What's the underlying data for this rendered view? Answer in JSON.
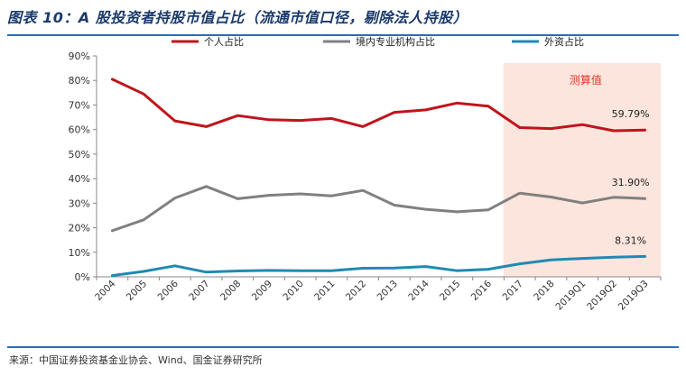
{
  "title": "图表 10：A 股投资者持股市值占比（流通市值口径，剔除法人持股）",
  "source": "来源：中国证券投资基金业协会、Wind、国金证券研究所",
  "colors": {
    "individual": "#c0141b",
    "institution": "#808080",
    "foreign": "#1f8ab3",
    "shade": "#fbe5dc",
    "shade_label": "#e0392b",
    "rule": "#2a6db5"
  },
  "chart_data": {
    "type": "line",
    "categories": [
      "2004",
      "2005",
      "2006",
      "2007",
      "2008",
      "2009",
      "2010",
      "2011",
      "2012",
      "2013",
      "2014",
      "2015",
      "2016",
      "2017",
      "2018",
      "2019Q1",
      "2019Q2",
      "2019Q3"
    ],
    "series": [
      {
        "name": "个人占比",
        "color_key": "individual",
        "values": [
          80.5,
          74.5,
          63.5,
          61.2,
          65.7,
          64.0,
          63.7,
          64.5,
          61.2,
          67.0,
          68.0,
          70.8,
          69.5,
          60.8,
          60.4,
          62.0,
          59.5,
          59.79
        ],
        "end_label": "59.79%"
      },
      {
        "name": "境内专业机构占比",
        "color_key": "institution",
        "values": [
          18.8,
          23.2,
          32.1,
          36.8,
          31.8,
          33.2,
          33.8,
          33.0,
          35.2,
          29.2,
          27.5,
          26.5,
          27.3,
          34.1,
          32.5,
          30.1,
          32.4,
          31.9
        ],
        "end_label": "31.90%"
      },
      {
        "name": "外资占比",
        "color_key": "foreign",
        "values": [
          0.5,
          2.2,
          4.5,
          1.9,
          2.4,
          2.6,
          2.5,
          2.5,
          3.5,
          3.6,
          4.2,
          2.5,
          3.1,
          5.3,
          6.9,
          7.5,
          8.0,
          8.31
        ],
        "end_label": "8.31%"
      }
    ],
    "y_ticks": [
      "0%",
      "10%",
      "20%",
      "30%",
      "40%",
      "50%",
      "60%",
      "70%",
      "80%",
      "90%"
    ],
    "ylim": [
      0,
      90
    ],
    "legend_position": "top",
    "shaded_region": {
      "from": "2017",
      "to": "2019Q3",
      "label": "测算值"
    },
    "grid": false
  }
}
